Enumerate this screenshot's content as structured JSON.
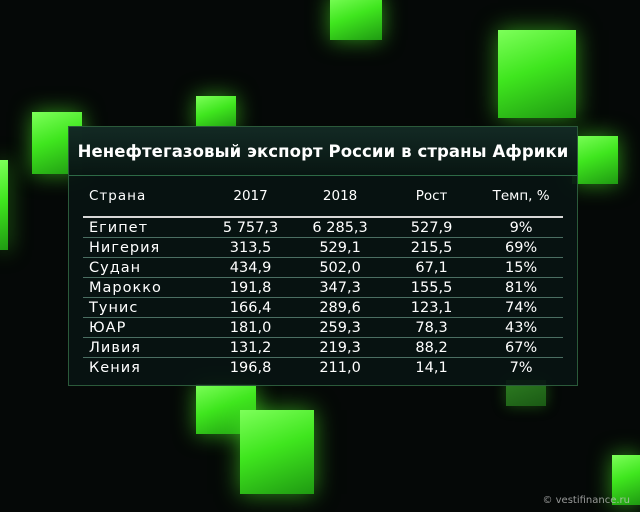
{
  "title": "Ненефтегазовый экспорт России в страны Африки",
  "headers": [
    "Страна",
    "2017",
    "2018",
    "Рост",
    "Темп, %"
  ],
  "rows": [
    [
      "Египет",
      "5 757,3",
      "6 285,3",
      "527,9",
      "9%"
    ],
    [
      "Нигерия",
      "313,5",
      "529,1",
      "215,5",
      "69%"
    ],
    [
      "Судан",
      "434,9",
      "502,0",
      "67,1",
      "15%"
    ],
    [
      "Марокко",
      "191,8",
      "347,3",
      "155,5",
      "81%"
    ],
    [
      "Тунис",
      "166,4",
      "289,6",
      "123,1",
      "74%"
    ],
    [
      "ЮАР",
      "181,0",
      "259,3",
      "78,3",
      "43%"
    ],
    [
      "Ливия",
      "131,2",
      "219,3",
      "88,2",
      "67%"
    ],
    [
      "Кения",
      "196,8",
      "211,0",
      "14,1",
      "7%"
    ]
  ],
  "watermark": "© vestifinance.ru",
  "colors": {
    "accent_green": "#4ef02a",
    "panel_bg": "#08140f",
    "text": "#ffffff"
  }
}
